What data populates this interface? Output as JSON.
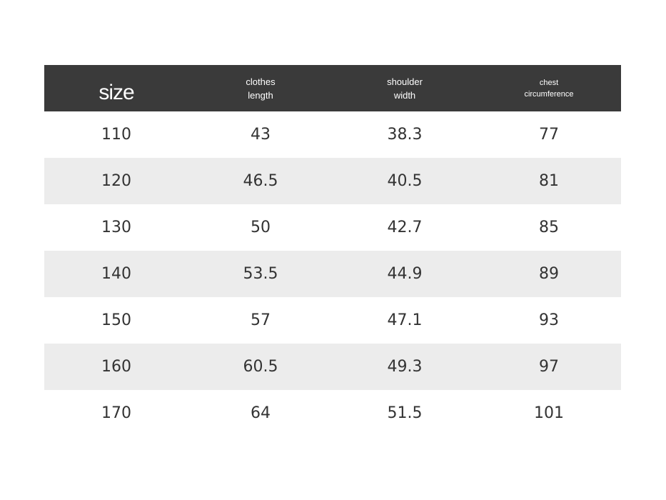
{
  "table": {
    "header": [
      "size",
      "clothes length",
      "shoulder width",
      "chest circumference"
    ],
    "rows": [
      [
        110,
        43,
        38.3,
        77
      ],
      [
        120,
        46.5,
        40.5,
        81
      ],
      [
        130,
        50,
        42.7,
        85
      ],
      [
        140,
        53.5,
        44.9,
        89
      ],
      [
        150,
        57,
        47.1,
        93
      ],
      [
        160,
        60.5,
        49.3,
        97
      ],
      [
        170,
        64,
        51.5,
        101
      ]
    ]
  }
}
